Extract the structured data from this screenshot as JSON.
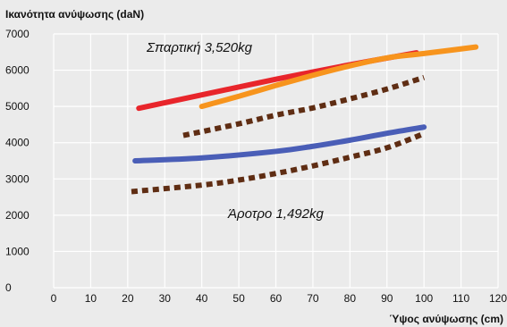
{
  "chart_data": {
    "type": "line",
    "title": "",
    "ylabel": "Ικανότητα ανύψωσης (daN)",
    "xlabel": "Ύψος ανύψωσης (cm)",
    "xlim": [
      0,
      120
    ],
    "ylim": [
      0,
      7000
    ],
    "x_ticks": [
      0,
      10,
      20,
      30,
      40,
      50,
      60,
      70,
      80,
      90,
      100,
      110,
      120
    ],
    "y_ticks": [
      0,
      1000,
      2000,
      3000,
      4000,
      5000,
      6000,
      7000
    ],
    "grid": true,
    "legend": "none",
    "annotations": [
      "Σπαρτική 3,520kg",
      "Άροτρο 1,492kg"
    ],
    "series": [
      {
        "color": "#e8252b",
        "style": "solid",
        "x": [
          23,
          40,
          60,
          80,
          98
        ],
        "y": [
          4950,
          5320,
          5750,
          6150,
          6480
        ]
      },
      {
        "color": "#f7941d",
        "style": "solid",
        "x": [
          40,
          50,
          60,
          70,
          80,
          90,
          100,
          114
        ],
        "y": [
          5000,
          5280,
          5580,
          5860,
          6120,
          6340,
          6460,
          6640
        ]
      },
      {
        "color": "#5f2d13",
        "style": "dotted",
        "x": [
          35,
          50,
          60,
          70,
          80,
          90,
          100
        ],
        "y": [
          4200,
          4520,
          4760,
          4960,
          5210,
          5480,
          5800
        ]
      },
      {
        "color": "#4a5eb7",
        "style": "solid",
        "x": [
          22,
          40,
          60,
          70,
          80,
          90,
          100
        ],
        "y": [
          3500,
          3580,
          3760,
          3900,
          4070,
          4260,
          4430
        ]
      },
      {
        "color": "#5f2d13",
        "style": "dotted",
        "x": [
          21,
          40,
          50,
          60,
          70,
          80,
          90,
          100
        ],
        "y": [
          2650,
          2830,
          2970,
          3150,
          3360,
          3600,
          3860,
          4250
        ]
      }
    ]
  }
}
